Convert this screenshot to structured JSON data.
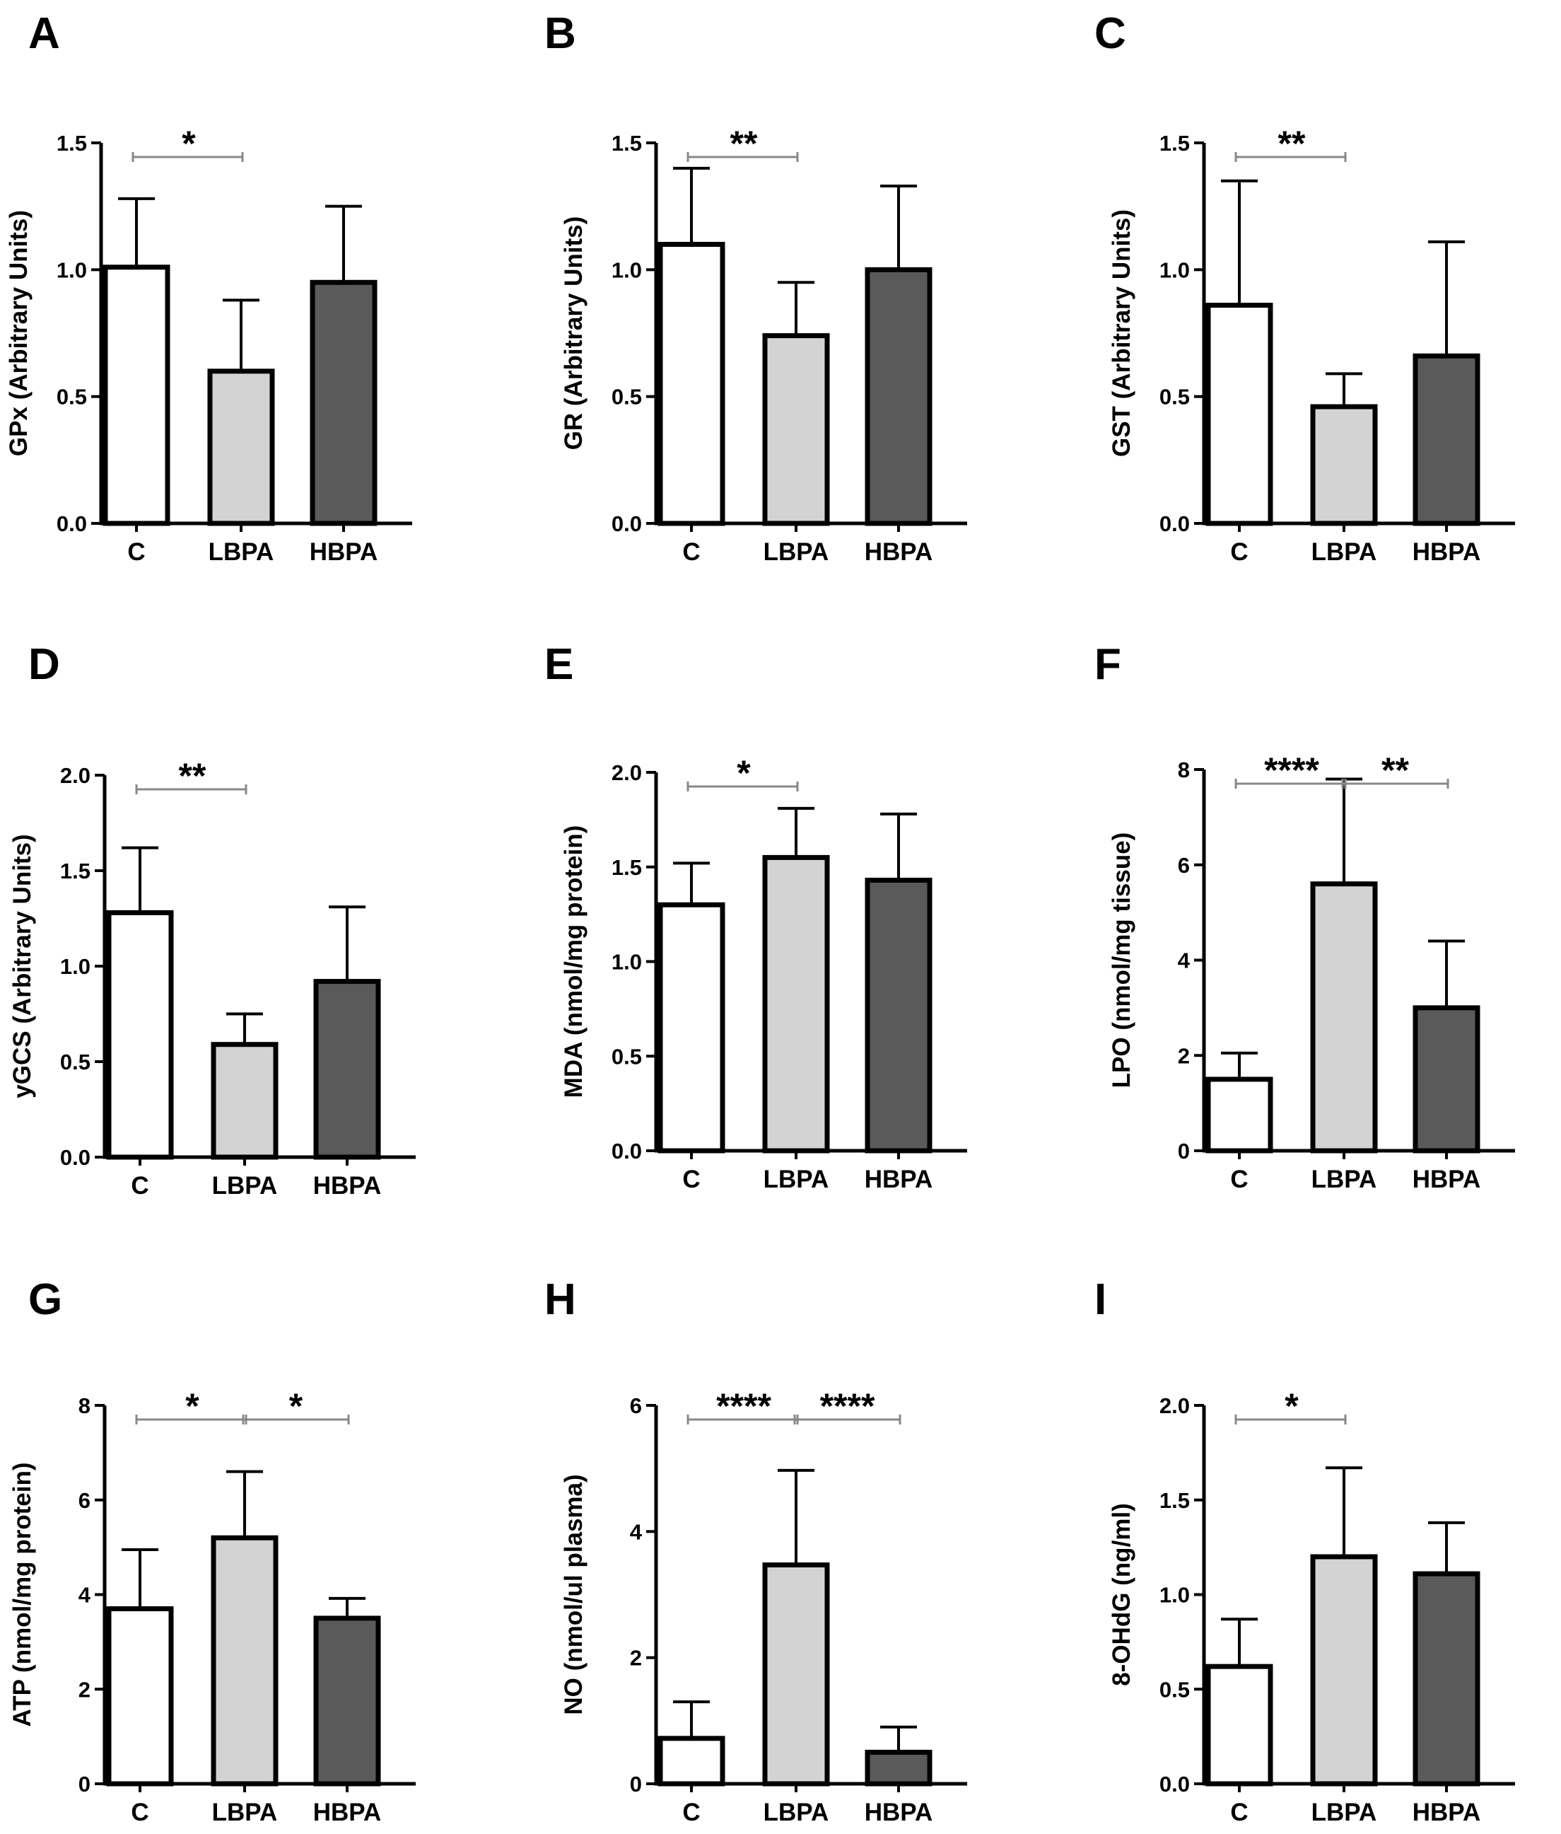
{
  "chart_data": [
    {
      "panel": "A",
      "type": "bar",
      "ylabel": "GPx (Arbitrary Units)",
      "categories": [
        "C",
        "LBPA",
        "HBPA"
      ],
      "values": [
        1.01,
        0.6,
        0.95
      ],
      "errors": [
        0.27,
        0.28,
        0.3
      ],
      "ylim": [
        0,
        1.5
      ],
      "yticks": [
        "0.0",
        "0.5",
        "1.0",
        "1.5"
      ],
      "significance": [
        {
          "from": 0,
          "to": 1,
          "label": "*"
        }
      ]
    },
    {
      "panel": "B",
      "type": "bar",
      "ylabel": "GR (Arbitrary Units)",
      "categories": [
        "C",
        "LBPA",
        "HBPA"
      ],
      "values": [
        1.1,
        0.74,
        1.0
      ],
      "errors": [
        0.3,
        0.21,
        0.33
      ],
      "ylim": [
        0,
        1.5
      ],
      "yticks": [
        "0.0",
        "0.5",
        "1.0",
        "1.5"
      ],
      "significance": [
        {
          "from": 0,
          "to": 1,
          "label": "**"
        }
      ]
    },
    {
      "panel": "C",
      "type": "bar",
      "ylabel": "GST (Arbitrary Units)",
      "categories": [
        "C",
        "LBPA",
        "HBPA"
      ],
      "values": [
        0.86,
        0.46,
        0.66
      ],
      "errors": [
        0.49,
        0.13,
        0.45
      ],
      "ylim": [
        0,
        1.5
      ],
      "yticks": [
        "0.0",
        "0.5",
        "1.0",
        "1.5"
      ],
      "significance": [
        {
          "from": 0,
          "to": 1,
          "label": "**"
        }
      ]
    },
    {
      "panel": "D",
      "type": "bar",
      "ylabel": "yGCS (Arbitrary Units)",
      "categories": [
        "C",
        "LBPA",
        "HBPA"
      ],
      "values": [
        1.28,
        0.59,
        0.92
      ],
      "errors": [
        0.34,
        0.16,
        0.39
      ],
      "ylim": [
        0,
        2.0
      ],
      "yticks": [
        "0.0",
        "0.5",
        "1.0",
        "1.5",
        "2.0"
      ],
      "significance": [
        {
          "from": 0,
          "to": 1,
          "label": "**"
        }
      ]
    },
    {
      "panel": "E",
      "type": "bar",
      "ylabel": "MDA (nmol/mg protein)",
      "categories": [
        "C",
        "LBPA",
        "HBPA"
      ],
      "values": [
        1.3,
        1.55,
        1.43
      ],
      "errors": [
        0.22,
        0.26,
        0.35
      ],
      "ylim": [
        0,
        2.0
      ],
      "yticks": [
        "0.0",
        "0.5",
        "1.0",
        "1.5",
        "2.0"
      ],
      "significance": [
        {
          "from": 0,
          "to": 1,
          "label": "*"
        }
      ]
    },
    {
      "panel": "F",
      "type": "bar",
      "ylabel": "LPO (nmol/mg tissue)",
      "categories": [
        "C",
        "LBPA",
        "HBPA"
      ],
      "values": [
        1.5,
        5.6,
        3.0
      ],
      "errors": [
        0.55,
        2.2,
        1.4
      ],
      "ylim": [
        0,
        8
      ],
      "yticks": [
        "0",
        "2",
        "4",
        "6",
        "8"
      ],
      "significance": [
        {
          "from": 0,
          "to": 1,
          "label": "****"
        },
        {
          "from": 1,
          "to": 2,
          "label": "**"
        }
      ]
    },
    {
      "panel": "G",
      "type": "bar",
      "ylabel": "ATP (nmol/mg protein)",
      "categories": [
        "C",
        "LBPA",
        "HBPA"
      ],
      "values": [
        3.7,
        5.2,
        3.5
      ],
      "errors": [
        1.25,
        1.4,
        0.42
      ],
      "ylim": [
        0,
        8
      ],
      "yticks": [
        "0",
        "2",
        "4",
        "6",
        "8"
      ],
      "significance": [
        {
          "from": 0,
          "to": 1,
          "label": "*"
        },
        {
          "from": 1,
          "to": 2,
          "label": "*"
        }
      ]
    },
    {
      "panel": "H",
      "type": "bar",
      "ylabel": "NO (nmol/ul plasma)",
      "categories": [
        "C",
        "LBPA",
        "HBPA"
      ],
      "values": [
        0.72,
        3.47,
        0.5
      ],
      "errors": [
        0.58,
        1.5,
        0.4
      ],
      "ylim": [
        0,
        6
      ],
      "yticks": [
        "0",
        "2",
        "4",
        "6"
      ],
      "significance": [
        {
          "from": 0,
          "to": 1,
          "label": "****"
        },
        {
          "from": 1,
          "to": 2,
          "label": "****"
        }
      ]
    },
    {
      "panel": "I",
      "type": "bar",
      "ylabel": "8-OHdG (ng/ml)",
      "categories": [
        "C",
        "LBPA",
        "HBPA"
      ],
      "values": [
        0.62,
        1.2,
        1.11
      ],
      "errors": [
        0.25,
        0.47,
        0.27
      ],
      "ylim": [
        0,
        2.0
      ],
      "yticks": [
        "0.0",
        "0.5",
        "1.0",
        "1.5",
        "2.0"
      ],
      "significance": [
        {
          "from": 0,
          "to": 1,
          "label": "*"
        }
      ]
    }
  ],
  "colors": {
    "C": "#ffffff",
    "LBPA": "#d3d3d3",
    "HBPA": "#5a5a5a",
    "stroke": "#000000",
    "bracket": "#888888"
  }
}
